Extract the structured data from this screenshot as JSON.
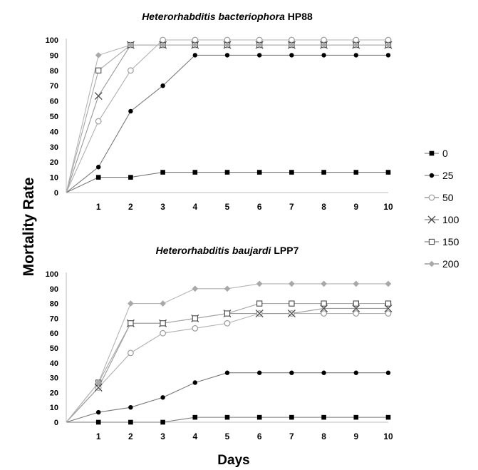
{
  "figure": {
    "ylabel": "Mortality Rate",
    "xlabel": "Days"
  },
  "legend": {
    "placement": "right",
    "entries": [
      {
        "label": "0",
        "marker": "filled-square",
        "color": "#000000"
      },
      {
        "label": "25",
        "marker": "filled-circle",
        "color": "#000000"
      },
      {
        "label": "50",
        "marker": "open-circle",
        "color": "#9a9a9a"
      },
      {
        "label": "100",
        "marker": "x",
        "color": "#4a4a4a"
      },
      {
        "label": "150",
        "marker": "open-square",
        "color": "#4a4a4a"
      },
      {
        "label": "200",
        "marker": "filled-diamond",
        "color": "#a8a8a8"
      }
    ]
  },
  "chart_data": [
    {
      "type": "line",
      "title_italic": "Heterorhabditis bacteriophora",
      "title_suffix": " HP88",
      "x": [
        0,
        1,
        2,
        3,
        4,
        5,
        6,
        7,
        8,
        9,
        10
      ],
      "xticks": [
        "1",
        "2",
        "3",
        "4",
        "5",
        "6",
        "7",
        "8",
        "9",
        "10"
      ],
      "yticks": [
        "0",
        "10",
        "20",
        "30",
        "40",
        "50",
        "60",
        "70",
        "80",
        "90",
        "100"
      ],
      "ylim": [
        0,
        100
      ],
      "grid": false,
      "series": [
        {
          "name": "0",
          "values": [
            0,
            10,
            10,
            13.3,
            13.3,
            13.3,
            13.3,
            13.3,
            13.3,
            13.3,
            13.3
          ]
        },
        {
          "name": "25",
          "values": [
            0,
            16.7,
            53.3,
            70,
            90,
            90,
            90,
            90,
            90,
            90,
            90
          ]
        },
        {
          "name": "50",
          "values": [
            0,
            46.7,
            80,
            100,
            100,
            100,
            100,
            100,
            100,
            100,
            100
          ]
        },
        {
          "name": "100",
          "values": [
            0,
            63.3,
            96.7,
            96.7,
            96.7,
            96.7,
            96.7,
            96.7,
            96.7,
            96.7,
            96.7
          ]
        },
        {
          "name": "150",
          "values": [
            0,
            80,
            96.7,
            96.7,
            96.7,
            96.7,
            96.7,
            96.7,
            96.7,
            96.7,
            96.7
          ]
        },
        {
          "name": "200",
          "values": [
            0,
            90,
            96.7,
            96.7,
            96.7,
            96.7,
            96.7,
            96.7,
            96.7,
            96.7,
            96.7
          ]
        }
      ]
    },
    {
      "type": "line",
      "title_italic": "Heterorhabditis baujardi",
      "title_suffix": " LPP7",
      "x": [
        0,
        1,
        2,
        3,
        4,
        5,
        6,
        7,
        8,
        9,
        10
      ],
      "xticks": [
        "1",
        "2",
        "3",
        "4",
        "5",
        "6",
        "7",
        "8",
        "9",
        "10"
      ],
      "yticks": [
        "0",
        "10",
        "20",
        "30",
        "40",
        "50",
        "60",
        "70",
        "80",
        "90",
        "100"
      ],
      "ylim": [
        0,
        100
      ],
      "grid": false,
      "series": [
        {
          "name": "0",
          "values": [
            0,
            0,
            0,
            0,
            3.3,
            3.3,
            3.3,
            3.3,
            3.3,
            3.3,
            3.3
          ]
        },
        {
          "name": "25",
          "values": [
            0,
            6.7,
            10,
            16.7,
            26.7,
            33.3,
            33.3,
            33.3,
            33.3,
            33.3,
            33.3
          ]
        },
        {
          "name": "50",
          "values": [
            0,
            23.3,
            46.7,
            60,
            63.3,
            66.7,
            73.3,
            73.3,
            73.3,
            73.3,
            73.3
          ]
        },
        {
          "name": "100",
          "values": [
            0,
            23.3,
            66.7,
            66.7,
            70,
            73.3,
            73.3,
            73.3,
            76.7,
            76.7,
            76.7
          ]
        },
        {
          "name": "150",
          "values": [
            0,
            26.7,
            66.7,
            66.7,
            70,
            73.3,
            80,
            80,
            80,
            80,
            80
          ]
        },
        {
          "name": "200",
          "values": [
            0,
            26.7,
            80,
            80,
            90,
            90,
            93.3,
            93.3,
            93.3,
            93.3,
            93.3
          ]
        }
      ]
    }
  ]
}
